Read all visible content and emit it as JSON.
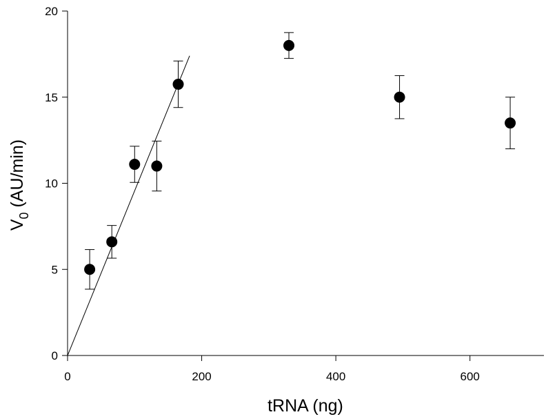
{
  "chart_data": {
    "type": "scatter",
    "title": "",
    "xlabel": "tRNA (ng)",
    "ylabel": {
      "main": "V",
      "subscript": "0",
      "rest": " (AU/min)"
    },
    "xlim": [
      0,
      700
    ],
    "ylim": [
      0,
      20
    ],
    "xticks": [
      0,
      200,
      400,
      600
    ],
    "yticks": [
      0,
      5,
      10,
      15,
      20
    ],
    "xtick_labels": [
      "0",
      "200",
      "400",
      "600"
    ],
    "ytick_labels": [
      "0",
      "5",
      "10",
      "15",
      "20"
    ],
    "grid": false,
    "legend": "none",
    "series": [
      {
        "marker": "filled-circle",
        "color": "#000000",
        "points": [
          {
            "x": 33,
            "y": 5.0,
            "err": 1.15
          },
          {
            "x": 66,
            "y": 6.6,
            "err": 0.95
          },
          {
            "x": 100,
            "y": 11.1,
            "err": 1.05
          },
          {
            "x": 133,
            "y": 11.0,
            "err": 1.45
          },
          {
            "x": 165,
            "y": 15.75,
            "err": 1.35
          },
          {
            "x": 330,
            "y": 18.0,
            "err": 0.75
          },
          {
            "x": 495,
            "y": 15.0,
            "err": 1.25
          },
          {
            "x": 660,
            "y": 13.5,
            "err": 1.5
          }
        ]
      }
    ],
    "fit_line": {
      "type": "linear",
      "x": [
        0,
        182
      ],
      "y": [
        0,
        17.4
      ],
      "color": "#000000"
    }
  }
}
